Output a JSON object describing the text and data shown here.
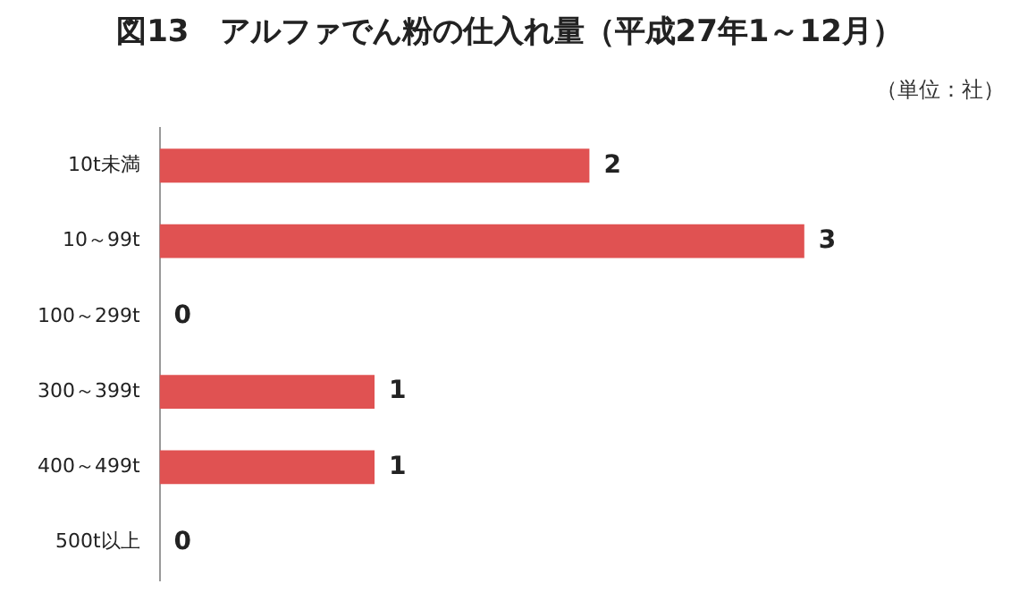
{
  "chart_data": {
    "type": "bar",
    "orientation": "horizontal",
    "title": "図13　アルファでん粉の仕入れ量（平成27年1～12月）",
    "categories": [
      "10t未満",
      "10～99t",
      "100～299t",
      "300～399t",
      "400～499t",
      "500t以上"
    ],
    "values": [
      2,
      3,
      0,
      1,
      1,
      0
    ],
    "color": "#e05252",
    "data_labels": true,
    "legend": false,
    "annotations": [
      "（単位：社）"
    ]
  }
}
